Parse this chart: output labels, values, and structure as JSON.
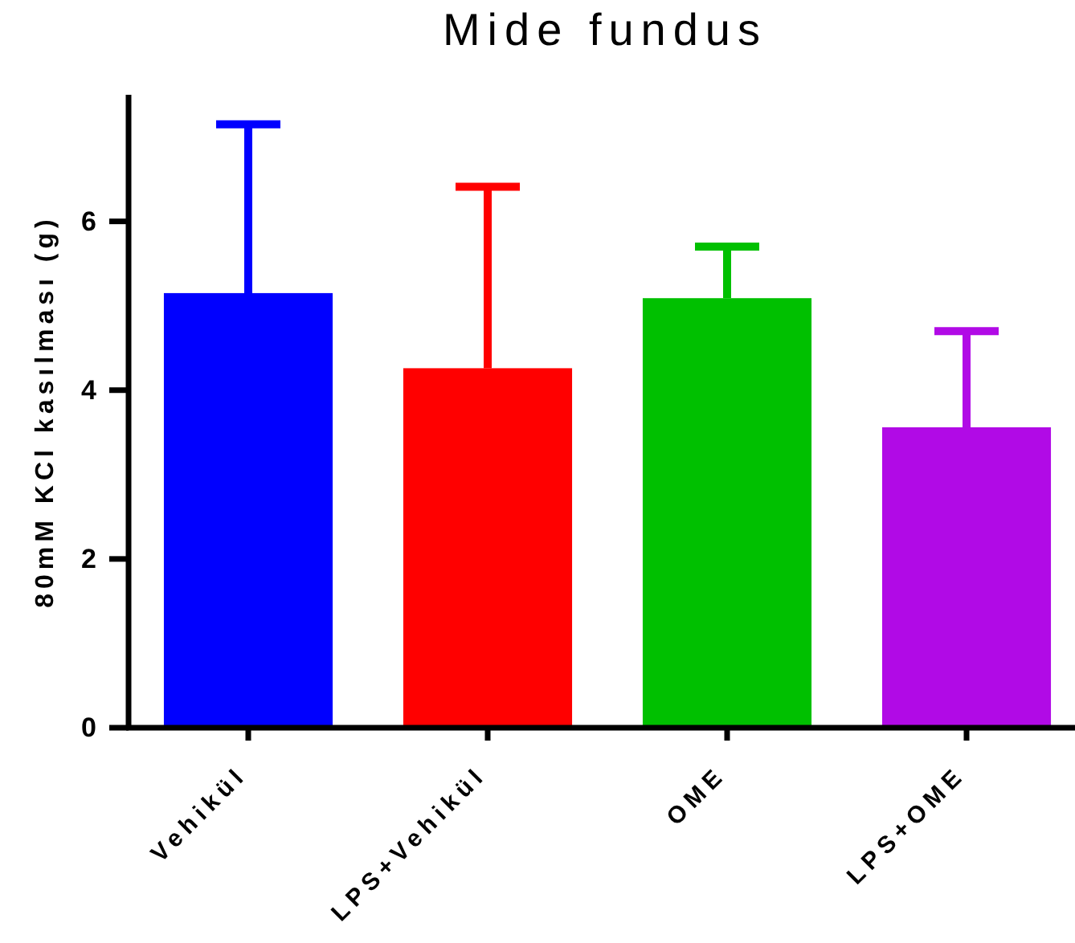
{
  "chart_data": {
    "type": "bar",
    "title": "Mide fundus",
    "ylabel": "80mM KCl kasılması (g)",
    "categories": [
      "Vehikül",
      "LPS+Vehikül",
      "OME",
      "LPS+OME"
    ],
    "values": [
      5.15,
      4.26,
      5.09,
      3.56
    ],
    "colors": [
      "#0000ff",
      "#ff0000",
      "#00c000",
      "#b10ae6"
    ],
    "errors": [
      [
        5.15,
        7.15
      ],
      [
        4.26,
        6.41
      ],
      [
        5.09,
        5.7
      ],
      [
        3.56,
        4.7
      ]
    ],
    "ylim": [
      0,
      7.5
    ],
    "yticks": [
      0,
      2,
      4,
      6
    ]
  }
}
